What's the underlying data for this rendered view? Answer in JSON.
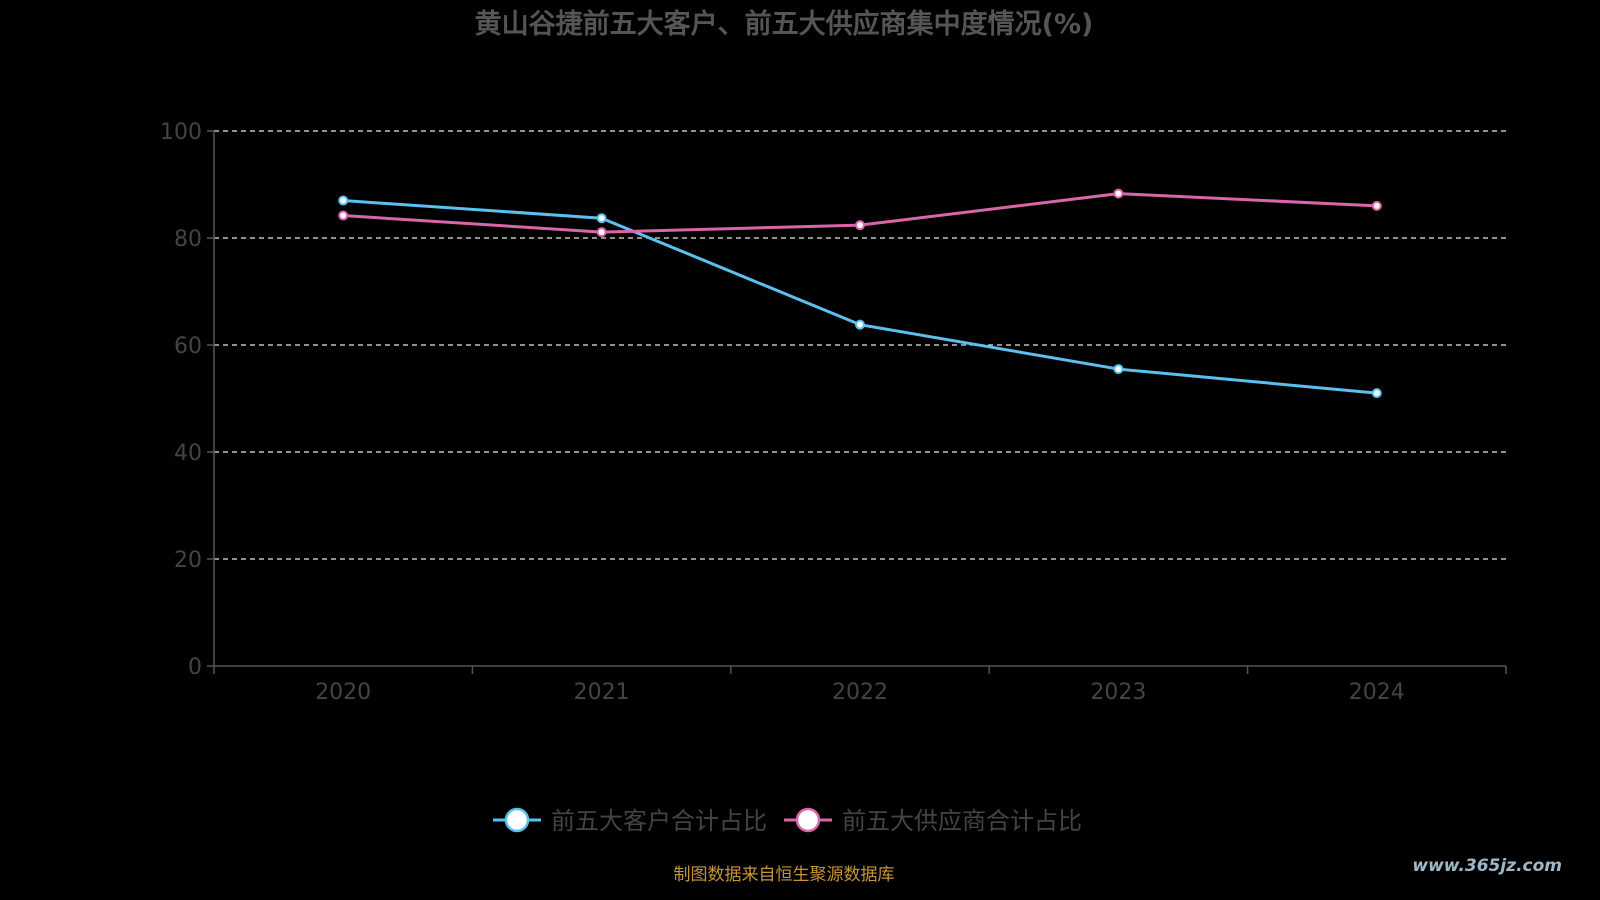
{
  "title": "黄山谷捷前五大客户、前五大供应商集中度情况(%)",
  "footer": "制图数据来自恒生聚源数据库",
  "watermark": "www.365jz.com",
  "chart_data": {
    "type": "line",
    "title": "黄山谷捷前五大客户、前五大供应商集中度情况(%)",
    "categories": [
      "2020",
      "2021",
      "2022",
      "2023",
      "2024"
    ],
    "ylim": [
      0,
      100
    ],
    "yticks": [
      0,
      20,
      40,
      60,
      80,
      100
    ],
    "grid": true,
    "legend_position": "bottom",
    "series": [
      {
        "name": "前五大客户合计占比",
        "values": [
          87.0,
          83.7,
          63.8,
          55.5,
          51.0
        ],
        "color": "#5bc0f0"
      },
      {
        "name": "前五大供应商合计占比",
        "values": [
          84.2,
          81.1,
          82.4,
          88.3,
          86.0
        ],
        "color": "#d966aa"
      }
    ]
  }
}
